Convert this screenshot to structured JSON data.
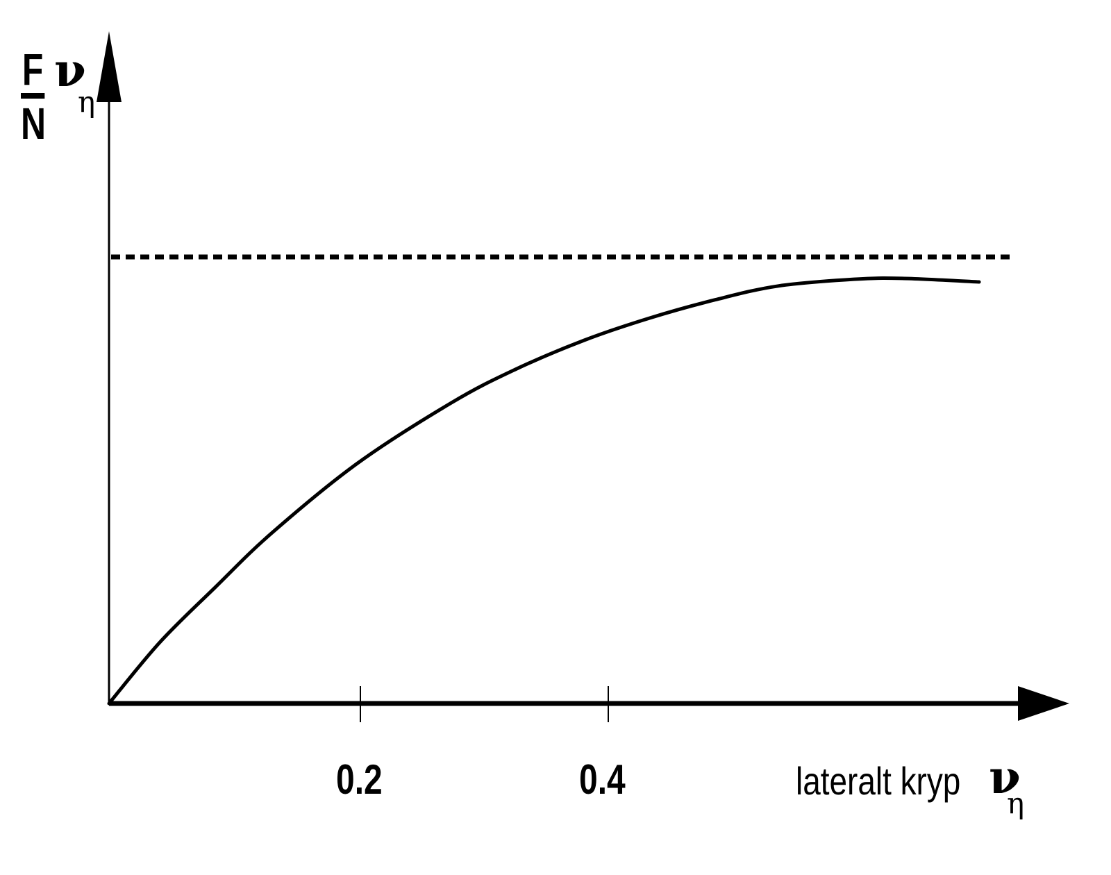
{
  "chart_data": {
    "type": "line",
    "title": "",
    "xlabel": "lateralt kryp ν_η",
    "ylabel": "F/N (ν_η)",
    "x_ticks": [
      "0.2",
      "0.4"
    ],
    "xlim": [
      0,
      0.77
    ],
    "ylim_note": "y axis has no numeric ticks; values expressed as fraction of the dashed asymptote (=1.0)",
    "grid": false,
    "legend": null,
    "series": [
      {
        "name": "F/N vs lateralt kryp",
        "style": "solid",
        "x": [
          0,
          0.041,
          0.086,
          0.131,
          0.2,
          0.276,
          0.327,
          0.383,
          0.436,
          0.489,
          0.54,
          0.601,
          0.64,
          0.702
        ],
        "y": [
          0,
          0.137,
          0.261,
          0.381,
          0.537,
          0.673,
          0.747,
          0.813,
          0.863,
          0.904,
          0.935,
          0.95,
          0.952,
          0.944
        ]
      },
      {
        "name": "asymptote",
        "style": "dashed",
        "x": [
          0,
          0.73
        ],
        "y": [
          1.0,
          1.0
        ]
      }
    ]
  },
  "labels": {
    "y_frac_num": "F",
    "y_frac_den": "N",
    "y_nu": "ν",
    "y_sub": "η",
    "tick_1": "0.2",
    "tick_2": "0.4",
    "x_text": "lateralt kryp",
    "x_nu": "ν",
    "x_sub": "η"
  },
  "colors": {
    "line": "#000000",
    "background": "#ffffff"
  }
}
